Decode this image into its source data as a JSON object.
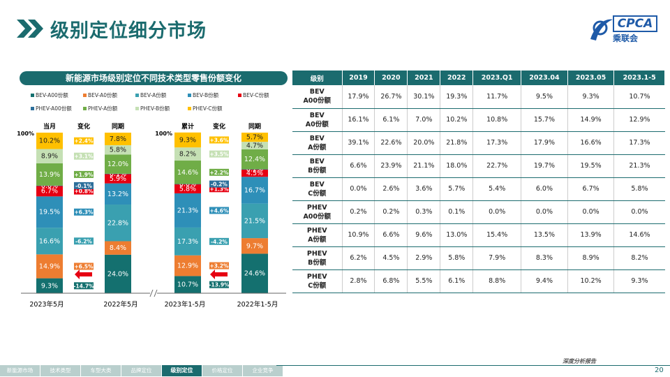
{
  "page": {
    "title": "级别定位细分市场",
    "page_number": "20",
    "footer_tag": "深度分析报告",
    "logo_text": "CPCA",
    "logo_sub": "乘联会"
  },
  "nav": {
    "items": [
      "新能源市场",
      "技术类型",
      "车型大类",
      "品牌定位",
      "级别定位",
      "价格定位",
      "企业竞争"
    ],
    "active_index": 4
  },
  "colors": {
    "BEV-A00": "#14706f",
    "BEV-A0": "#ed7d31",
    "BEV-A": "#3aa0b0",
    "BEV-B": "#2e8fb8",
    "BEV-C": "#e60012",
    "PHEV-A00": "#2d6f9b",
    "PHEV-A": "#70ad47",
    "PHEV-B": "#c5e0b4",
    "PHEV-C": "#ffc000",
    "theme": "#1b6b6e"
  },
  "chart_data": {
    "type": "bar",
    "stacked": true,
    "title": "新能源市场级别定位不同技术类型零售份额变化",
    "legend": [
      "BEV-A00份额",
      "BEV-A0份额",
      "BEV-A份额",
      "BEV-B份额",
      "BEV-C份额",
      "PHEV-A00份额",
      "PHEV-A份额",
      "PHEV-B份额",
      "PHEV-C份额"
    ],
    "ylabel_top": "100%",
    "groups": [
      {
        "xlabel": "2023年5月",
        "header_current": "当月",
        "header_change": "变化",
        "header_prior": "同期",
        "current": [
          9.3,
          14.9,
          16.6,
          19.5,
          6.7,
          0.0,
          13.9,
          8.9,
          10.2
        ],
        "prior": [
          24.0,
          8.4,
          22.8,
          13.2,
          5.9,
          0.1,
          12.0,
          5.8,
          7.8
        ],
        "change": [
          "-14.7%",
          "+6.5%",
          "-6.2%",
          "+6.3%",
          "+0.8%",
          "-0.1%",
          "+1.9%",
          "+3.1%",
          "+2.4%"
        ],
        "current_labels": [
          "9.3%",
          "14.9%",
          "16.6%",
          "19.5%",
          "6.7%",
          "0.0%",
          "13.9%",
          "8.9%",
          "10.2%"
        ],
        "prior_labels": [
          "24.0%",
          "8.4%",
          "22.8%",
          "13.2%",
          "5.9%",
          "0.1%",
          "12.0%",
          "5.8%",
          "7.8%"
        ]
      },
      {
        "xlabel": "2023年1-5月",
        "xlabel_prior": "2022年1-5月",
        "header_current": "累计",
        "header_change": "变化",
        "header_prior": "同期",
        "current": [
          10.7,
          12.9,
          17.3,
          21.3,
          5.8,
          0.0,
          14.6,
          8.2,
          9.3
        ],
        "prior": [
          24.6,
          9.7,
          21.5,
          16.7,
          4.5,
          0.2,
          12.4,
          4.7,
          5.7
        ],
        "change": [
          "-13.9%",
          "+3.2%",
          "-4.2%",
          "+4.6%",
          "+1.3%",
          "-0.2%",
          "+2.2%",
          "+3.5%",
          "+3.6%"
        ],
        "current_labels": [
          "10.7%",
          "12.9%",
          "17.3%",
          "21.3%",
          "5.8%",
          "0.0%",
          "14.6%",
          "8.2%",
          "9.3%"
        ],
        "prior_labels": [
          "24.6%",
          "9.7%",
          "21.5%",
          "16.7%",
          "4.5%",
          "0.2%",
          "12.4%",
          "4.7%",
          "5.7%"
        ]
      }
    ],
    "prior_xlabel_first": "2022年5月"
  },
  "table": {
    "headers": [
      "级别",
      "2019",
      "2020",
      "2021",
      "2022",
      "2023.Q1",
      "2023.04",
      "2023.05",
      "2023.1-5"
    ],
    "rows": [
      {
        "l1": "BEV",
        "l2": "A00份额",
        "values": [
          "17.9%",
          "26.7%",
          "30.1%",
          "19.3%",
          "11.7%",
          "9.5%",
          "9.3%",
          "10.7%"
        ]
      },
      {
        "l1": "BEV",
        "l2": "A0份额",
        "values": [
          "16.1%",
          "6.1%",
          "7.0%",
          "10.2%",
          "10.8%",
          "15.7%",
          "14.9%",
          "12.9%"
        ]
      },
      {
        "l1": "BEV",
        "l2": "A份额",
        "values": [
          "39.1%",
          "22.6%",
          "20.0%",
          "21.8%",
          "17.3%",
          "17.9%",
          "16.6%",
          "17.3%"
        ]
      },
      {
        "l1": "BEV",
        "l2": "B份额",
        "values": [
          "6.6%",
          "23.9%",
          "21.1%",
          "18.0%",
          "22.7%",
          "19.7%",
          "19.5%",
          "21.3%"
        ]
      },
      {
        "l1": "BEV",
        "l2": "C份额",
        "values": [
          "0.0%",
          "2.6%",
          "3.6%",
          "5.7%",
          "5.4%",
          "6.0%",
          "6.7%",
          "5.8%"
        ]
      },
      {
        "l1": "PHEV",
        "l2": "A00份额",
        "values": [
          "0.2%",
          "0.2%",
          "0.3%",
          "0.1%",
          "0.0%",
          "0.0%",
          "0.0%",
          "0.0%"
        ]
      },
      {
        "l1": "PHEV",
        "l2": "A份额",
        "values": [
          "10.9%",
          "6.6%",
          "9.6%",
          "13.0%",
          "15.4%",
          "13.5%",
          "13.9%",
          "14.6%"
        ]
      },
      {
        "l1": "PHEV",
        "l2": "B份额",
        "values": [
          "6.2%",
          "4.5%",
          "2.9%",
          "5.8%",
          "7.9%",
          "8.3%",
          "8.9%",
          "8.2%"
        ]
      },
      {
        "l1": "PHEV",
        "l2": "C份额",
        "values": [
          "2.8%",
          "6.8%",
          "5.5%",
          "6.1%",
          "8.8%",
          "9.4%",
          "10.2%",
          "9.3%"
        ]
      }
    ]
  }
}
